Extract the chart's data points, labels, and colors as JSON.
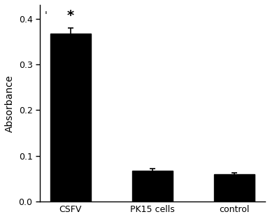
{
  "categories": [
    "CSFV",
    "PK15 cells",
    "control"
  ],
  "values": [
    0.367,
    0.068,
    0.06
  ],
  "errors": [
    0.013,
    0.004,
    0.003
  ],
  "bar_color": "#000000",
  "ylabel": "Absorbance",
  "ylim": [
    0.0,
    0.43
  ],
  "yticks": [
    0.0,
    0.1,
    0.2,
    0.3,
    0.4
  ],
  "significance_label": "*",
  "sig_bar_index": 0,
  "background_color": "#ffffff",
  "bar_width": 0.5,
  "title_fontsize": 10,
  "axis_fontsize": 10,
  "tick_fontsize": 9
}
